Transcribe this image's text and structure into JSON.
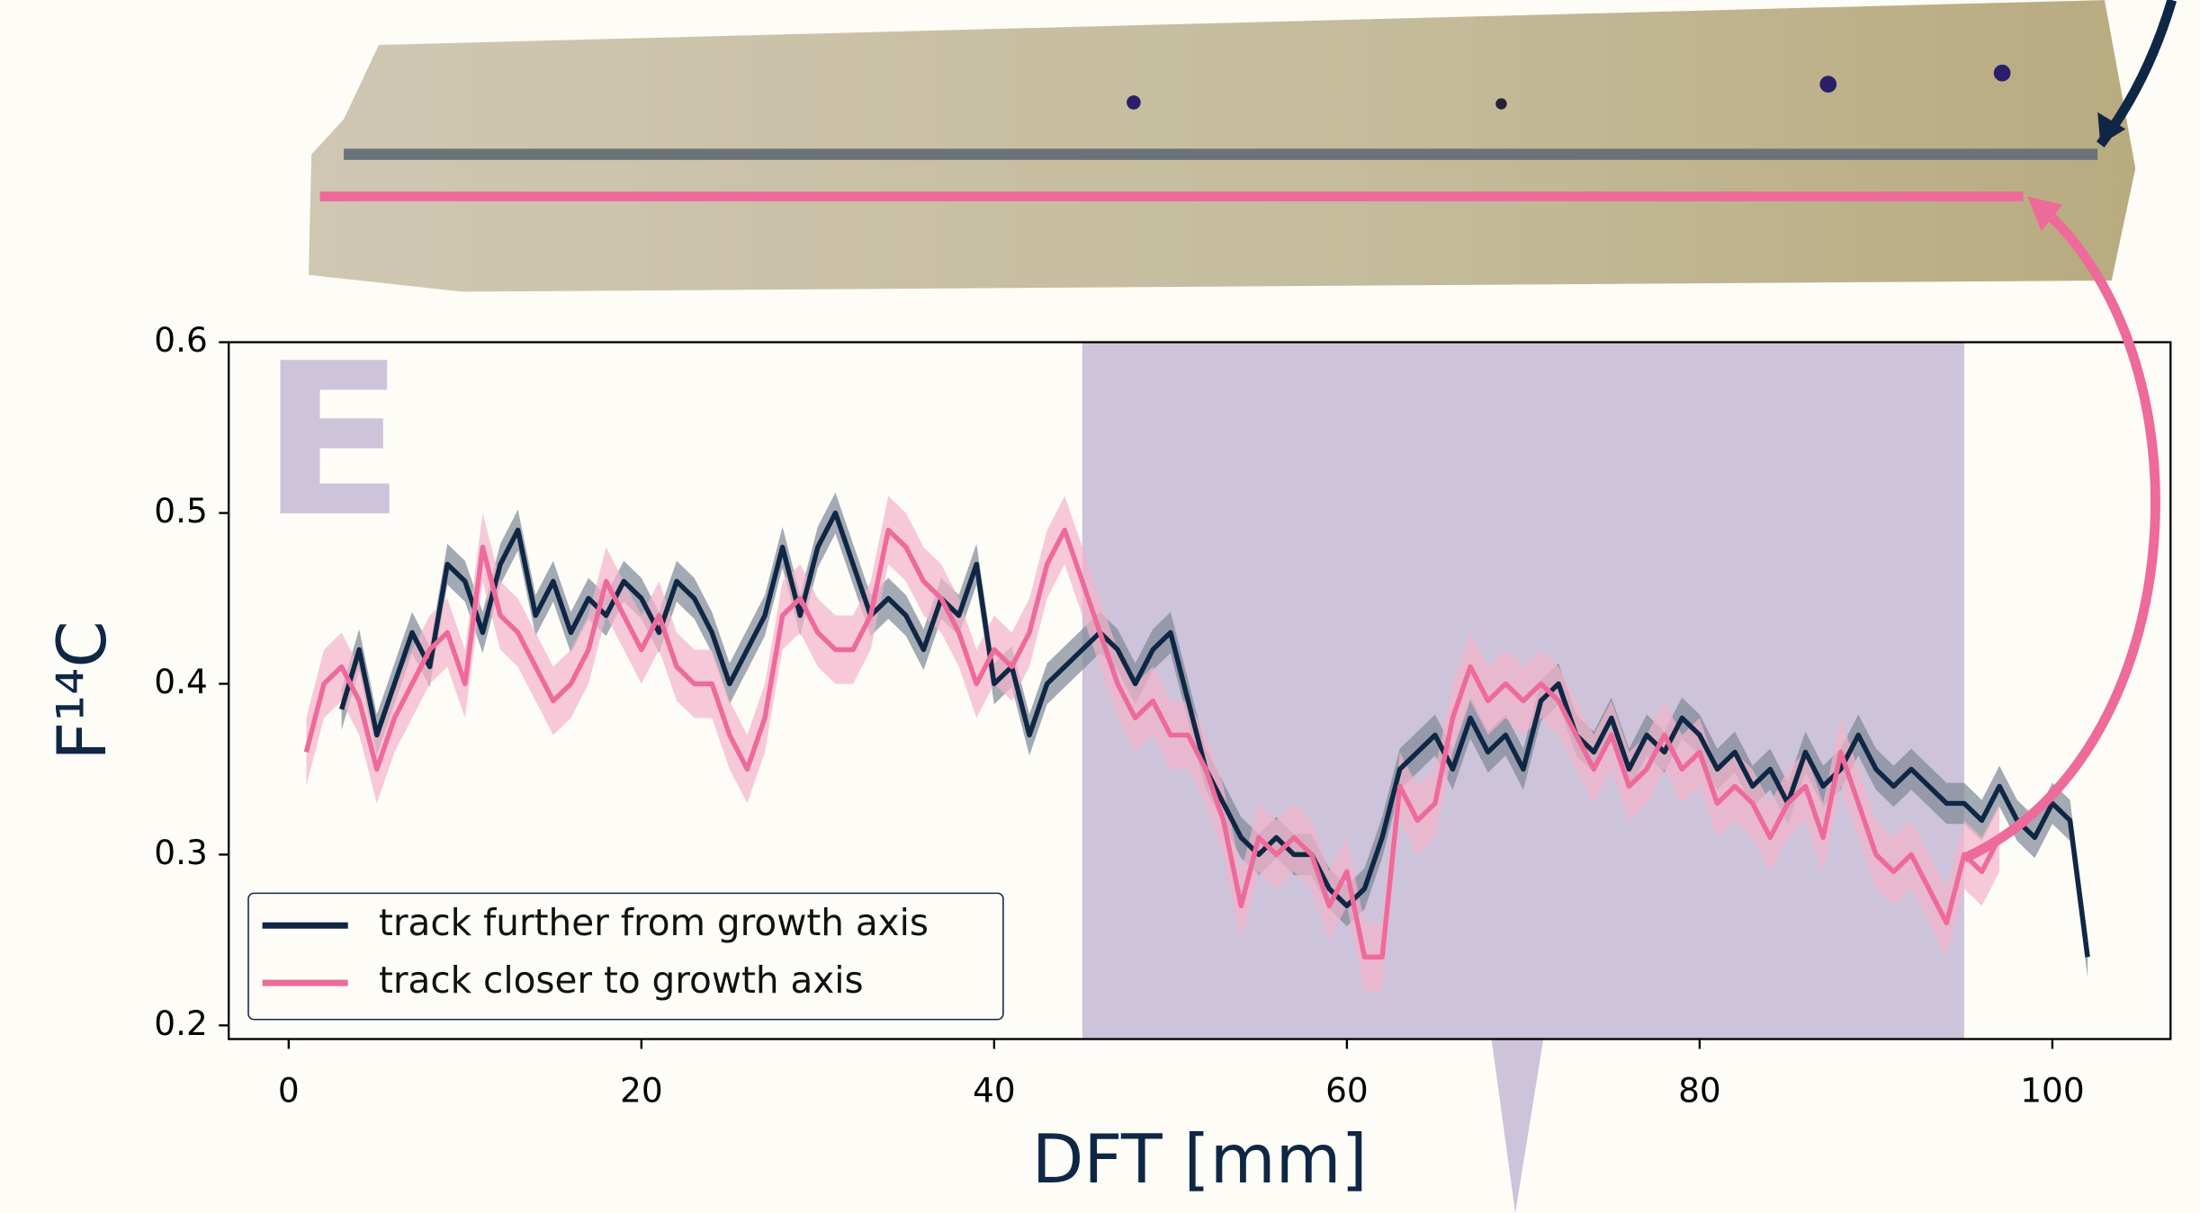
{
  "chart_data": {
    "type": "line",
    "panel_label": "E",
    "xlabel": "DFT [mm]",
    "ylabel": "F¹⁴C",
    "xlim": [
      -3.4,
      106.7
    ],
    "ylim": [
      0.192,
      0.6
    ],
    "xticks": [
      0,
      20,
      40,
      60,
      80,
      100
    ],
    "yticks": [
      0.2,
      0.3,
      0.4,
      0.5,
      0.6
    ],
    "legend": "lower left",
    "shaded_region": {
      "range": [
        45,
        95
      ],
      "color": "#cdc3da"
    },
    "x": [
      1,
      2,
      3,
      4,
      5,
      6,
      7,
      8,
      9,
      10,
      11,
      12,
      13,
      14,
      15,
      16,
      17,
      18,
      19,
      20,
      21,
      22,
      23,
      24,
      25,
      26,
      27,
      28,
      29,
      30,
      31,
      32,
      33,
      34,
      35,
      36,
      37,
      38,
      39,
      40,
      41,
      42,
      43,
      44,
      45,
      46,
      47,
      48,
      49,
      50,
      51,
      52,
      53,
      54,
      55,
      56,
      57,
      58,
      59,
      60,
      61,
      62,
      63,
      64,
      65,
      66,
      67,
      68,
      69,
      70,
      71,
      72,
      73,
      74,
      75,
      76,
      77,
      78,
      79,
      80,
      81,
      82,
      83,
      84,
      85,
      86,
      87,
      88,
      89,
      90,
      91,
      92,
      93,
      94,
      95,
      96,
      97,
      98,
      99,
      100,
      101,
      102
    ],
    "series": [
      {
        "name": "track further from growth axis",
        "color": "#0f2744",
        "band_color": "#7d8896",
        "uncertainty": 0.012,
        "values": [
          null,
          null,
          0.385,
          0.42,
          0.37,
          0.4,
          0.43,
          0.41,
          0.47,
          0.46,
          0.43,
          0.47,
          0.49,
          0.44,
          0.46,
          0.43,
          0.45,
          0.44,
          0.46,
          0.45,
          0.43,
          0.46,
          0.45,
          0.43,
          0.4,
          0.42,
          0.44,
          0.48,
          0.44,
          0.48,
          0.5,
          0.47,
          0.44,
          0.45,
          0.44,
          0.42,
          0.45,
          0.44,
          0.47,
          0.4,
          0.41,
          0.37,
          0.4,
          0.41,
          0.42,
          0.43,
          0.42,
          0.4,
          0.42,
          0.43,
          0.39,
          0.35,
          0.33,
          0.31,
          0.3,
          0.31,
          0.3,
          0.3,
          0.28,
          0.27,
          0.28,
          0.31,
          0.35,
          0.36,
          0.37,
          0.35,
          0.38,
          0.36,
          0.37,
          0.35,
          0.39,
          0.4,
          0.37,
          0.36,
          0.38,
          0.35,
          0.37,
          0.36,
          0.38,
          0.37,
          0.35,
          0.36,
          0.34,
          0.35,
          0.33,
          0.36,
          0.34,
          0.35,
          0.37,
          0.35,
          0.34,
          0.35,
          0.34,
          0.33,
          0.33,
          0.32,
          0.34,
          0.32,
          0.31,
          0.33,
          0.32,
          0.24
        ]
      },
      {
        "name": "track closer to growth axis",
        "color": "#ee6a9a",
        "band_color": "#f4b3cb",
        "uncertainty": 0.02,
        "values": [
          0.36,
          0.4,
          0.41,
          0.39,
          0.35,
          0.38,
          0.4,
          0.42,
          0.43,
          0.4,
          0.48,
          0.44,
          0.43,
          0.41,
          0.39,
          0.4,
          0.42,
          0.46,
          0.44,
          0.42,
          0.44,
          0.41,
          0.4,
          0.4,
          0.37,
          0.35,
          0.38,
          0.44,
          0.45,
          0.43,
          0.42,
          0.42,
          0.44,
          0.49,
          0.48,
          0.46,
          0.45,
          0.43,
          0.4,
          0.42,
          0.41,
          0.43,
          0.47,
          0.49,
          0.46,
          0.43,
          0.4,
          0.38,
          0.39,
          0.37,
          0.37,
          0.35,
          0.32,
          0.27,
          0.31,
          0.3,
          0.31,
          0.3,
          0.27,
          0.29,
          0.24,
          0.24,
          0.34,
          0.32,
          0.33,
          0.38,
          0.41,
          0.39,
          0.4,
          0.39,
          0.4,
          0.39,
          0.37,
          0.35,
          0.37,
          0.34,
          0.35,
          0.37,
          0.35,
          0.36,
          0.33,
          0.34,
          0.33,
          0.31,
          0.33,
          0.34,
          0.31,
          0.36,
          0.33,
          0.3,
          0.29,
          0.3,
          0.28,
          0.26,
          0.3,
          0.29,
          0.31,
          null,
          null,
          null,
          null,
          null
        ]
      }
    ]
  }
}
